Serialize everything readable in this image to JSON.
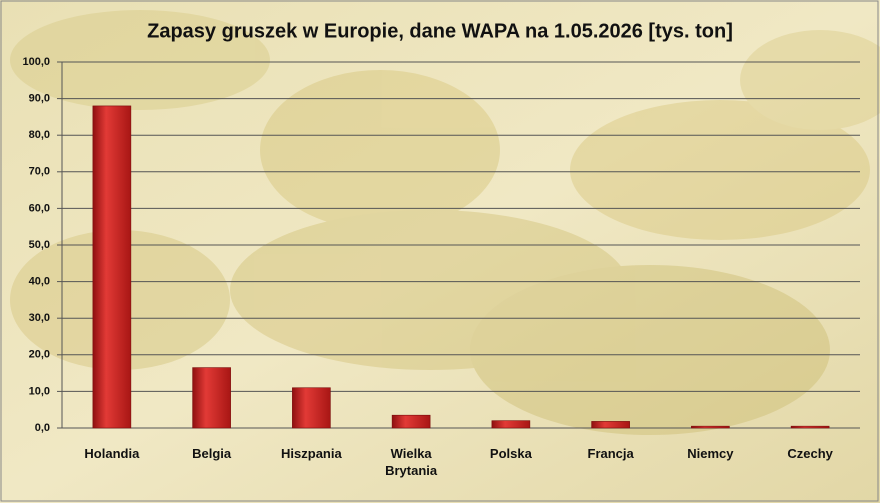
{
  "chart_data": {
    "type": "bar",
    "title": "Zapasy gruszek w Europie, dane WAPA na 1.05.2026  [tys. ton]",
    "categories": [
      "Holandia",
      "Belgia",
      "Hiszpania",
      "Wielka Brytania",
      "Polska",
      "Francja",
      "Niemcy",
      "Czechy"
    ],
    "values": [
      88,
      16.5,
      11,
      3.5,
      2,
      1.8,
      0.5,
      0.5
    ],
    "color": "#c8201f",
    "ylim": [
      0,
      100
    ],
    "yticks": [
      {
        "value": 0,
        "label": "0,0"
      },
      {
        "value": 10,
        "label": "10,0"
      },
      {
        "value": 20,
        "label": "20,0"
      },
      {
        "value": 30,
        "label": "30,0"
      },
      {
        "value": 40,
        "label": "40,0"
      },
      {
        "value": 50,
        "label": "50,0"
      },
      {
        "value": 60,
        "label": "60,0"
      },
      {
        "value": 70,
        "label": "70,0"
      },
      {
        "value": 80,
        "label": "80,0"
      },
      {
        "value": 90,
        "label": "90,0"
      },
      {
        "value": 100,
        "label": "100,0"
      }
    ],
    "grid": true
  }
}
